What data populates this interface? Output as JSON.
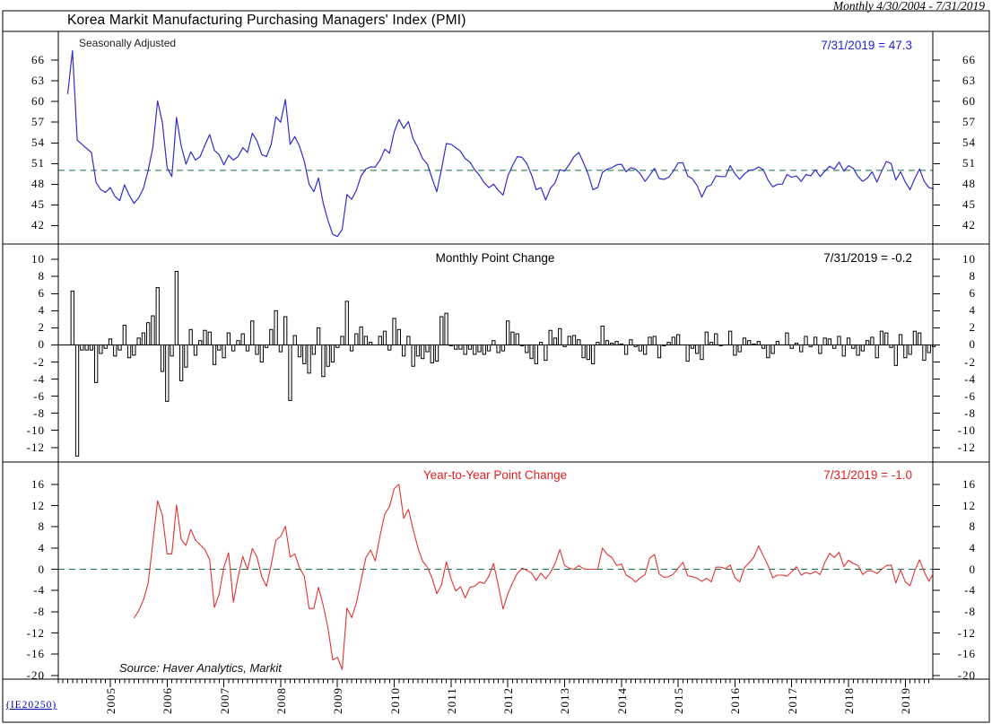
{
  "header": {
    "title": "Korea Markit Manufacturing Purchasing Managers' Index (PMI)",
    "range_label": "Monthly 4/30/2004 - 7/31/2019"
  },
  "footer": {
    "source": "Source: Haver Analytics, Markit",
    "doc_code": "(IE20250)"
  },
  "colors": {
    "pmi_line": "#2e2ec9",
    "pmi_value_label": "#2222dd",
    "yoy_line": "#e03333",
    "yoy_label": "#e02020",
    "reference_green": "#107040",
    "bar_fill": "#ffffff",
    "bar_stroke": "#000000",
    "axis_black": "#000000",
    "link_blue": "#0000bb"
  },
  "x_axis": {
    "start_month": "2004-04",
    "end_month": "2019-07",
    "frequency": "monthly",
    "years": [
      "2005",
      "2006",
      "2007",
      "2008",
      "2009",
      "2010",
      "2011",
      "2012",
      "2013",
      "2014",
      "2015",
      "2016",
      "2017",
      "2018",
      "2019"
    ]
  },
  "chart_data": [
    {
      "id": "pmi",
      "type": "line",
      "label": "Seasonally Adjusted",
      "last_value_label": "7/31/2019 = 47.3",
      "last_value": 47.3,
      "reference_line": 50,
      "ylim": [
        39.3,
        70.2
      ],
      "yticks": [
        66,
        63,
        60,
        57,
        54,
        51,
        48,
        45,
        42
      ],
      "x_start": "2004-04",
      "values": [
        61.1,
        67.4,
        54.4,
        53.8,
        53.2,
        52.6,
        48.2,
        47.2,
        46.8,
        47.5,
        46.2,
        45.6,
        47.9,
        46.4,
        45.2,
        46.0,
        47.4,
        50.0,
        53.4,
        60.1,
        57.0,
        50.4,
        49.1,
        57.7,
        53.5,
        50.9,
        52.7,
        51.5,
        52.0,
        53.7,
        55.2,
        52.9,
        52.3,
        50.8,
        52.2,
        51.5,
        52.0,
        53.3,
        52.6,
        55.4,
        54.3,
        52.3,
        52.0,
        53.8,
        57.8,
        57.0,
        60.3,
        53.8,
        54.9,
        53.5,
        51.3,
        48.0,
        46.9,
        48.9,
        45.2,
        42.7,
        40.7,
        40.4,
        41.4,
        46.5,
        45.8,
        47.1,
        49.2,
        50.2,
        50.5,
        50.5,
        51.5,
        53.1,
        52.5,
        55.6,
        57.4,
        56.1,
        57.1,
        54.6,
        53.3,
        51.7,
        50.9,
        48.8,
        46.9,
        50.2,
        53.9,
        53.8,
        53.3,
        52.8,
        51.7,
        51.2,
        50.1,
        49.3,
        48.2,
        47.5,
        48.0,
        47.1,
        46.4,
        49.2,
        50.7,
        52.0,
        51.9,
        51.0,
        49.4,
        47.2,
        47.5,
        45.7,
        47.4,
        48.2,
        50.1,
        49.9,
        50.9,
        52.0,
        52.6,
        51.1,
        49.4,
        47.2,
        47.5,
        49.7,
        50.2,
        50.4,
        50.8,
        50.9,
        49.8,
        50.4,
        50.2,
        49.5,
        48.4,
        49.3,
        50.3,
        48.8,
        48.7,
        49.0,
        49.9,
        51.1,
        51.1,
        49.2,
        48.8,
        47.8,
        46.1,
        47.6,
        47.9,
        49.2,
        49.1,
        49.1,
        50.7,
        49.5,
        48.7,
        49.5,
        50.0,
        50.1,
        50.5,
        50.1,
        48.6,
        47.6,
        48.0,
        48.0,
        49.4,
        49.0,
        49.2,
        48.4,
        49.4,
        49.2,
        50.1,
        49.1,
        49.9,
        50.6,
        50.2,
        51.2,
        49.9,
        50.7,
        50.3,
        49.1,
        48.4,
        48.9,
        49.8,
        48.3,
        49.9,
        51.3,
        51.0,
        48.6,
        49.8,
        48.3,
        47.2,
        48.8,
        50.2,
        48.4,
        47.5,
        47.3
      ]
    },
    {
      "id": "monthly_change",
      "type": "bar",
      "title": "Monthly Point Change",
      "last_value_label": "7/31/2019 = -0.2",
      "last_value": -0.2,
      "derived_from": "pmi",
      "derivation": "1-month difference of pmi values",
      "reference_line": 0,
      "ylim": [
        -13.7,
        11.8
      ],
      "yticks": [
        10,
        8,
        6,
        4,
        2,
        0,
        -2,
        -4,
        -6,
        -8,
        -10,
        -12
      ]
    },
    {
      "id": "yoy_change",
      "type": "line",
      "title": "Year-to-Year Point Change",
      "last_value_label": "7/31/2019 = -1.0",
      "last_value": -1.0,
      "derived_from": "pmi",
      "derivation": "12-month difference of pmi values",
      "start_offset_months": 14,
      "reference_line": 0,
      "ylim": [
        -20.7,
        20.2
      ],
      "yticks": [
        16,
        12,
        8,
        4,
        0,
        -4,
        -8,
        -12,
        -16,
        -20
      ]
    }
  ]
}
